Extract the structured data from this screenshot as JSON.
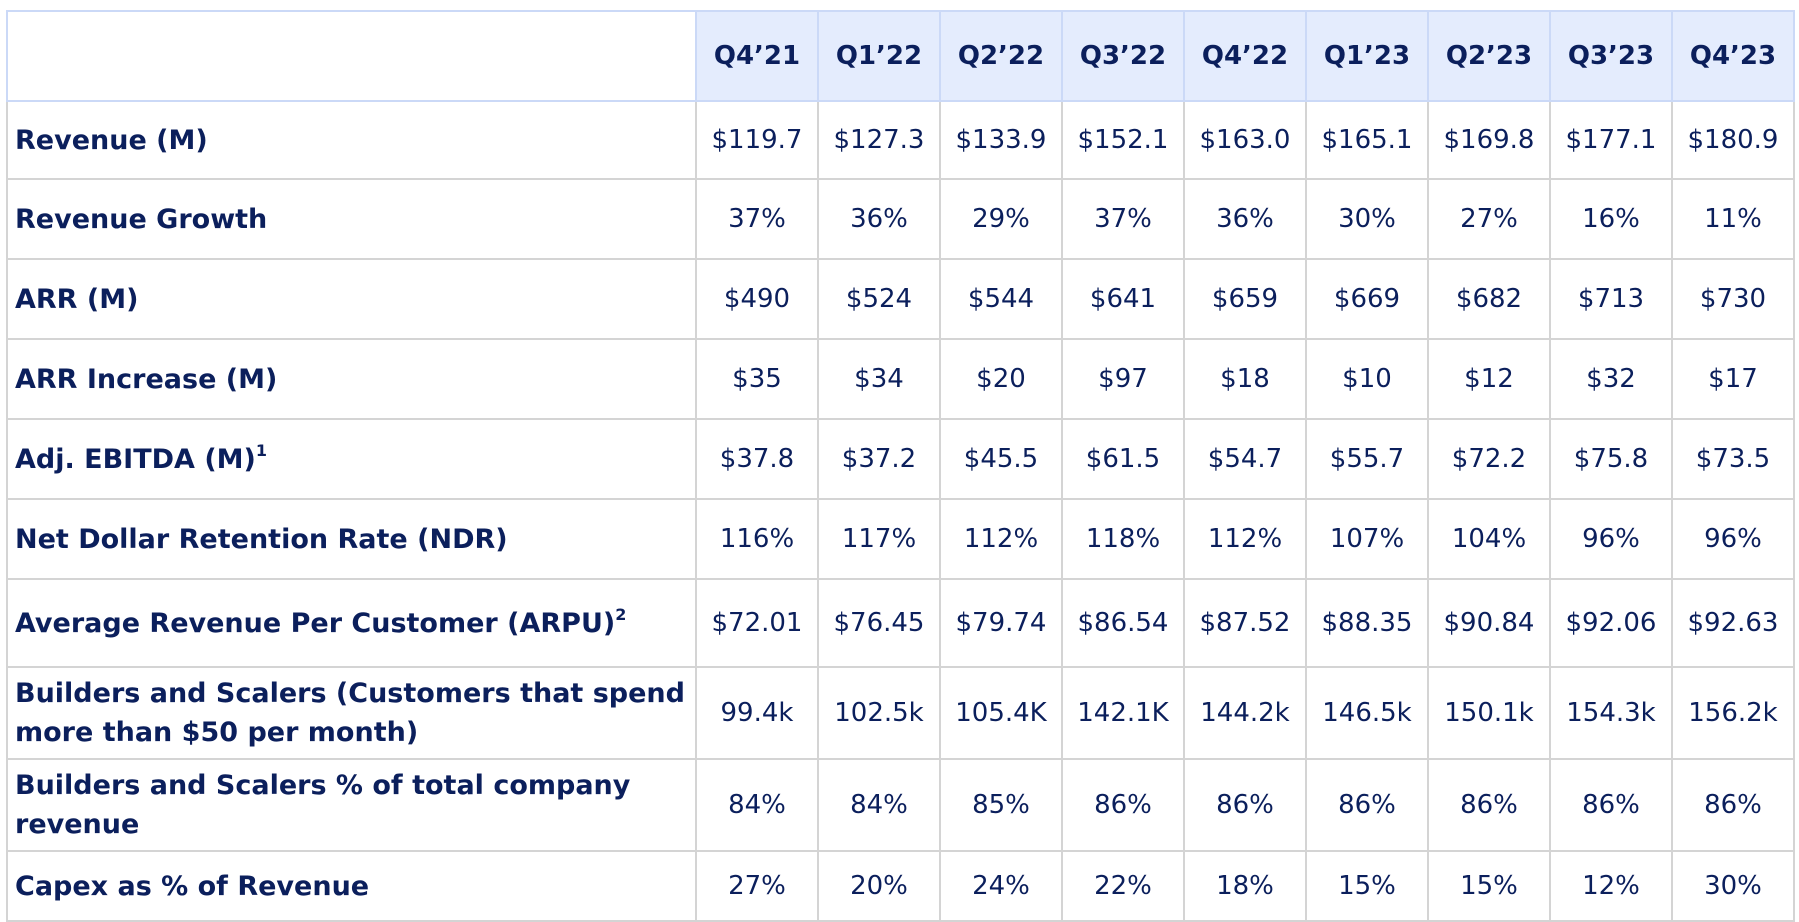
{
  "table": {
    "columns": [
      "Q4’21",
      "Q1’22",
      "Q2’22",
      "Q3’22",
      "Q4’22",
      "Q1’23",
      "Q2’23",
      "Q3’23",
      "Q4’23"
    ],
    "rows": [
      {
        "label": "Revenue (M)",
        "footnote": "",
        "values": [
          "$119.7",
          "$127.3",
          "$133.9",
          "$152.1",
          "$163.0",
          "$165.1",
          "$169.8",
          "$177.1",
          "$180.9"
        ]
      },
      {
        "label": "Revenue Growth",
        "footnote": "",
        "values": [
          "37%",
          "36%",
          "29%",
          "37%",
          "36%",
          "30%",
          "27%",
          "16%",
          "11%"
        ]
      },
      {
        "label": "ARR (M)",
        "footnote": "",
        "values": [
          "$490",
          "$524",
          "$544",
          "$641",
          "$659",
          "$669",
          "$682",
          "$713",
          "$730"
        ]
      },
      {
        "label": "ARR Increase (M)",
        "footnote": "",
        "values": [
          "$35",
          "$34",
          "$20",
          "$97",
          "$18",
          "$10",
          "$12",
          "$32",
          "$17"
        ]
      },
      {
        "label": "Adj. EBITDA (M)",
        "footnote": "1",
        "values": [
          "$37.8",
          "$37.2",
          "$45.5",
          "$61.5",
          "$54.7",
          "$55.7",
          "$72.2",
          "$75.8",
          "$73.5"
        ]
      },
      {
        "label": "Net Dollar Retention Rate (NDR)",
        "footnote": "",
        "values": [
          "116%",
          "117%",
          "112%",
          "118%",
          "112%",
          "107%",
          "104%",
          "96%",
          "96%"
        ]
      },
      {
        "label": "Average Revenue Per Customer (ARPU)",
        "footnote": "2",
        "values": [
          "$72.01",
          "$76.45",
          "$79.74",
          "$86.54",
          "$87.52",
          "$88.35",
          "$90.84",
          "$92.06",
          "$92.63"
        ]
      },
      {
        "label": "Builders and Scalers (Customers that spend more than $50 per month)",
        "footnote": "",
        "values": [
          "99.4k",
          "102.5k",
          "105.4K",
          "142.1K",
          "144.2k",
          "146.5k",
          "150.1k",
          "154.3k",
          "156.2k"
        ]
      },
      {
        "label": "Builders and Scalers % of total company revenue",
        "footnote": "",
        "values": [
          "84%",
          "84%",
          "85%",
          "86%",
          "86%",
          "86%",
          "86%",
          "86%",
          "86%"
        ]
      },
      {
        "label": "Capex as % of Revenue",
        "footnote": "",
        "values": [
          "27%",
          "20%",
          "24%",
          "22%",
          "18%",
          "15%",
          "15%",
          "12%",
          "30%"
        ]
      }
    ]
  },
  "colors": {
    "text": "#0b1f5c",
    "header_bg": "#e4ecfd",
    "grid": "#d4d4d4"
  }
}
